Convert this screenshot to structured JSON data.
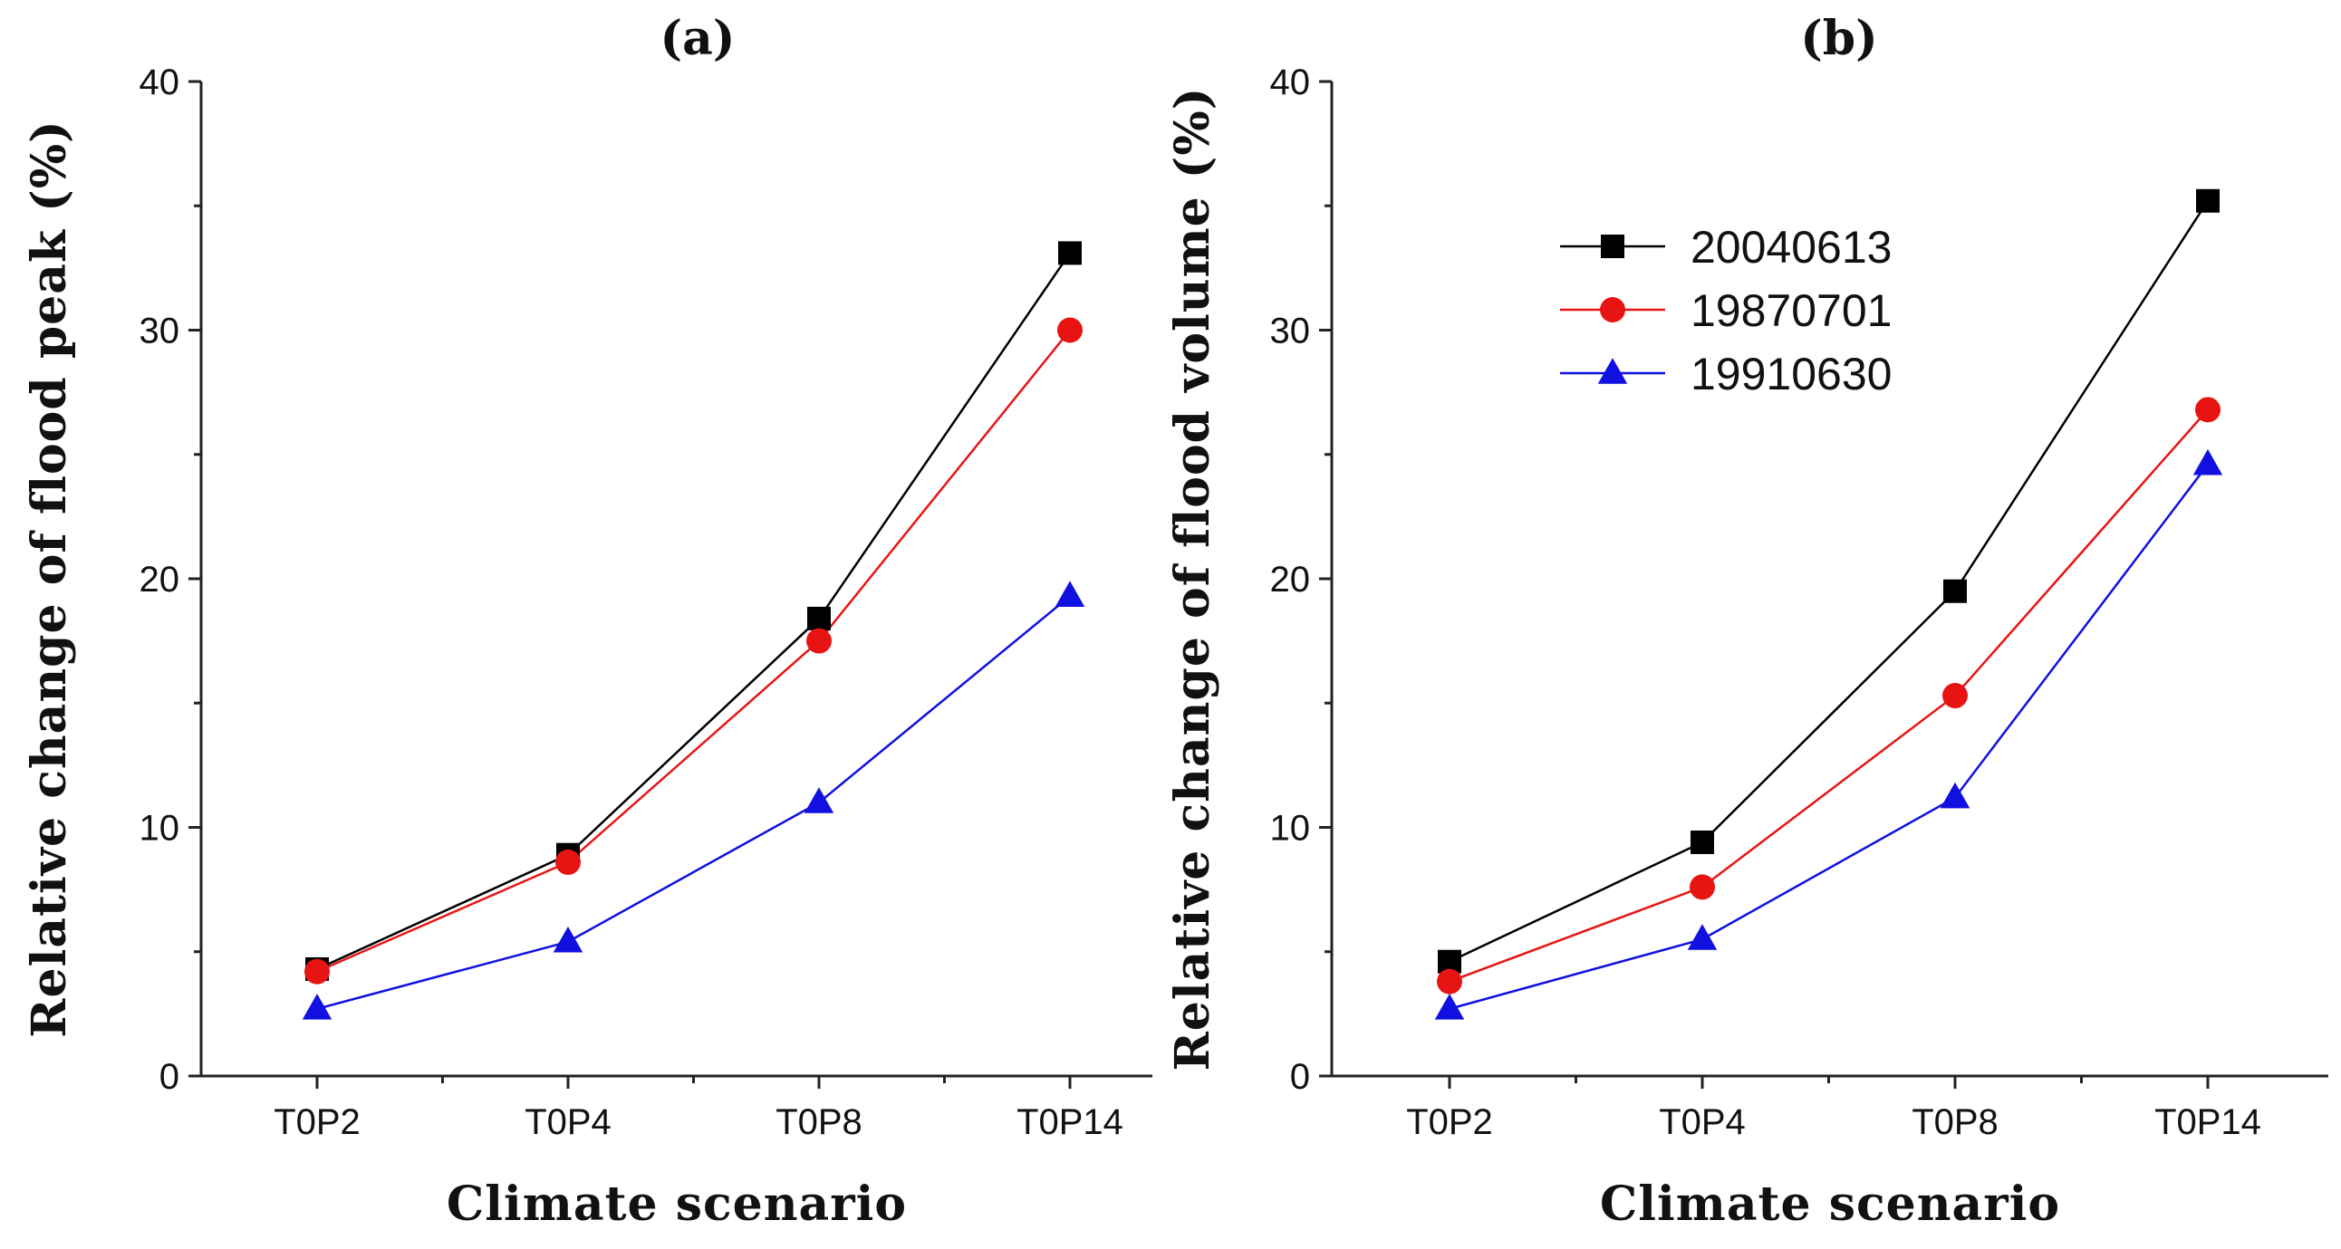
{
  "colors": {
    "20040613": "#000000",
    "19870701": "#e81414",
    "19910630": "#1010e0",
    "axis": "#222222"
  },
  "legend": {
    "entries": [
      "20040613",
      "19870701",
      "19910630"
    ],
    "placement": "upper-right of panel (b)"
  },
  "chart_data": [
    {
      "type": "line",
      "panel_label": "(a)",
      "title": "(a)",
      "xlabel": "Climate scenario",
      "ylabel": "Relative change of flood peak (%)",
      "categories": [
        "T0P2",
        "T0P4",
        "T0P8",
        "T0P14"
      ],
      "ylim": [
        0,
        40
      ],
      "yticks": [
        0,
        10,
        20,
        30,
        40
      ],
      "grid": false,
      "series": [
        {
          "name": "20040613",
          "marker": "square",
          "color": "#000000",
          "values": [
            4.3,
            8.9,
            18.4,
            33.1
          ]
        },
        {
          "name": "19870701",
          "marker": "circle",
          "color": "#e81414",
          "values": [
            4.2,
            8.6,
            17.5,
            30.0
          ]
        },
        {
          "name": "19910630",
          "marker": "triangle",
          "color": "#1010e0",
          "values": [
            2.7,
            5.4,
            11.0,
            19.3
          ]
        }
      ]
    },
    {
      "type": "line",
      "panel_label": "(b)",
      "title": "(b)",
      "xlabel": "Climate scenario",
      "ylabel": "Relative change of flood volume (%)",
      "categories": [
        "T0P2",
        "T0P4",
        "T0P8",
        "T0P14"
      ],
      "ylim": [
        0,
        40
      ],
      "yticks": [
        0,
        10,
        20,
        30,
        40
      ],
      "grid": false,
      "series": [
        {
          "name": "20040613",
          "marker": "square",
          "color": "#000000",
          "values": [
            4.6,
            9.4,
            19.5,
            35.2
          ]
        },
        {
          "name": "19870701",
          "marker": "circle",
          "color": "#e81414",
          "values": [
            3.8,
            7.6,
            15.3,
            26.8
          ]
        },
        {
          "name": "19910630",
          "marker": "triangle",
          "color": "#1010e0",
          "values": [
            2.7,
            5.5,
            11.2,
            24.6
          ]
        }
      ]
    }
  ]
}
